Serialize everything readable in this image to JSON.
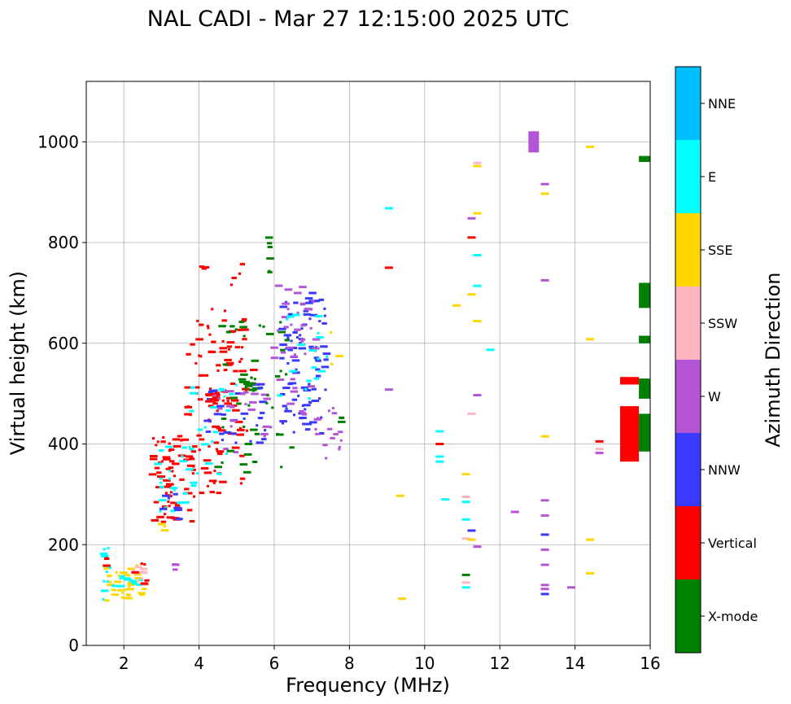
{
  "chart_data": {
    "type": "scatter",
    "title": "NAL CADI - Mar 27 12:15:00 2025 UTC",
    "xlabel": "Frequency (MHz)",
    "ylabel": "Virtual height (km)",
    "xlim": [
      1,
      16
    ],
    "ylim": [
      0,
      1120
    ],
    "xticks": [
      2,
      4,
      6,
      8,
      10,
      12,
      14,
      16
    ],
    "yticks": [
      0,
      200,
      400,
      600,
      800,
      1000
    ],
    "grid": true,
    "colorbar": {
      "label": "Azimuth Direction",
      "categories": [
        {
          "name": "X-mode",
          "color": "#008000"
        },
        {
          "name": "Vertical",
          "color": "#ff0000"
        },
        {
          "name": "NNW",
          "color": "#3a3aff"
        },
        {
          "name": "W",
          "color": "#b455d6"
        },
        {
          "name": "SSW",
          "color": "#ffb6c1"
        },
        {
          "name": "SSE",
          "color": "#ffd700"
        },
        {
          "name": "E",
          "color": "#00ffff"
        },
        {
          "name": "NNE",
          "color": "#00bfff"
        }
      ]
    },
    "clusters": [
      {
        "direction": "E",
        "f": [
          1.45,
          1.6
        ],
        "h": [
          90,
          200
        ],
        "n": 10
      },
      {
        "direction": "Vertical",
        "f": [
          1.45,
          1.55
        ],
        "h": [
          150,
          175
        ],
        "n": 3
      },
      {
        "direction": "SSE",
        "f": [
          1.5,
          2.6
        ],
        "h": [
          88,
          160
        ],
        "n": 34
      },
      {
        "direction": "E",
        "f": [
          1.7,
          2.5
        ],
        "h": [
          115,
          140
        ],
        "n": 12
      },
      {
        "direction": "SSW",
        "f": [
          2.1,
          2.6
        ],
        "h": [
          120,
          160
        ],
        "n": 12
      },
      {
        "direction": "Vertical",
        "f": [
          2.3,
          2.65
        ],
        "h": [
          120,
          170
        ],
        "n": 6
      },
      {
        "direction": "W",
        "f": [
          3.35,
          3.4
        ],
        "h": [
          150,
          165
        ],
        "n": 3
      },
      {
        "direction": "Vertical",
        "f": [
          2.75,
          3.9
        ],
        "h": [
          240,
          420
        ],
        "n": 75
      },
      {
        "direction": "E",
        "f": [
          2.9,
          3.9
        ],
        "h": [
          260,
          400
        ],
        "n": 28
      },
      {
        "direction": "SSE",
        "f": [
          2.9,
          3.1
        ],
        "h": [
          225,
          245
        ],
        "n": 3
      },
      {
        "direction": "NNW",
        "f": [
          3.0,
          3.5
        ],
        "h": [
          250,
          330
        ],
        "n": 8
      },
      {
        "direction": "Vertical",
        "f": [
          3.7,
          5.3
        ],
        "h": [
          300,
          660
        ],
        "n": 90
      },
      {
        "direction": "Vertical",
        "f": [
          4.2,
          4.8
        ],
        "h": [
          480,
          510
        ],
        "n": 18
      },
      {
        "direction": "Vertical",
        "f": [
          4.0,
          5.5
        ],
        "h": [
          540,
          760
        ],
        "n": 20
      },
      {
        "direction": "E",
        "f": [
          3.8,
          5.0
        ],
        "h": [
          330,
          520
        ],
        "n": 20
      },
      {
        "direction": "NNW",
        "f": [
          4.2,
          5.8
        ],
        "h": [
          400,
          520
        ],
        "n": 30
      },
      {
        "direction": "W",
        "f": [
          4.3,
          6.0
        ],
        "h": [
          380,
          520
        ],
        "n": 25
      },
      {
        "direction": "X-mode",
        "f": [
          4.5,
          6.5
        ],
        "h": [
          340,
          650
        ],
        "n": 45
      },
      {
        "direction": "X-mode",
        "f": [
          5.1,
          5.5
        ],
        "h": [
          505,
          545
        ],
        "n": 15
      },
      {
        "direction": "X-mode",
        "f": [
          5.85,
          5.9
        ],
        "h": [
          730,
          820
        ],
        "n": 6
      },
      {
        "direction": "NNW",
        "f": [
          6.2,
          7.4
        ],
        "h": [
          420,
          700
        ],
        "n": 90
      },
      {
        "direction": "W",
        "f": [
          6.0,
          7.4
        ],
        "h": [
          450,
          715
        ],
        "n": 40
      },
      {
        "direction": "E",
        "f": [
          6.0,
          7.5
        ],
        "h": [
          450,
          660
        ],
        "n": 18
      },
      {
        "direction": "W",
        "f": [
          7.1,
          7.8
        ],
        "h": [
          370,
          485
        ],
        "n": 16
      },
      {
        "direction": "X-mode",
        "f": [
          7.75,
          7.8
        ],
        "h": [
          440,
          465
        ],
        "n": 3
      },
      {
        "direction": "SSE",
        "f": [
          7.4,
          7.8
        ],
        "h": [
          555,
          640
        ],
        "n": 3
      }
    ],
    "points": [
      {
        "f": 9.05,
        "h": 750,
        "direction": "Vertical"
      },
      {
        "f": 9.05,
        "h": 868,
        "direction": "E"
      },
      {
        "f": 9.05,
        "h": 508,
        "direction": "W"
      },
      {
        "f": 9.35,
        "h": 297,
        "direction": "SSE"
      },
      {
        "f": 9.4,
        "h": 93,
        "direction": "SSE"
      },
      {
        "f": 10.4,
        "h": 425,
        "direction": "E"
      },
      {
        "f": 10.4,
        "h": 400,
        "direction": "Vertical"
      },
      {
        "f": 10.4,
        "h": 375,
        "direction": "E"
      },
      {
        "f": 10.4,
        "h": 365,
        "direction": "E"
      },
      {
        "f": 10.55,
        "h": 290,
        "direction": "E"
      },
      {
        "f": 10.85,
        "h": 675,
        "direction": "SSE"
      },
      {
        "f": 11.1,
        "h": 340,
        "direction": "SSE"
      },
      {
        "f": 11.1,
        "h": 295,
        "direction": "SSW"
      },
      {
        "f": 11.1,
        "h": 285,
        "direction": "E"
      },
      {
        "f": 11.1,
        "h": 250,
        "direction": "E"
      },
      {
        "f": 11.1,
        "h": 212,
        "direction": "SSW"
      },
      {
        "f": 11.1,
        "h": 140,
        "direction": "X-mode"
      },
      {
        "f": 11.1,
        "h": 125,
        "direction": "SSW"
      },
      {
        "f": 11.1,
        "h": 115,
        "direction": "E"
      },
      {
        "f": 11.25,
        "h": 848,
        "direction": "W"
      },
      {
        "f": 11.25,
        "h": 810,
        "direction": "Vertical"
      },
      {
        "f": 11.25,
        "h": 697,
        "direction": "SSE"
      },
      {
        "f": 11.25,
        "h": 460,
        "direction": "SSW"
      },
      {
        "f": 11.25,
        "h": 228,
        "direction": "NNW"
      },
      {
        "f": 11.25,
        "h": 210,
        "direction": "SSE"
      },
      {
        "f": 11.4,
        "h": 958,
        "direction": "SSW"
      },
      {
        "f": 11.4,
        "h": 952,
        "direction": "SSE"
      },
      {
        "f": 11.4,
        "h": 858,
        "direction": "SSE"
      },
      {
        "f": 11.4,
        "h": 775,
        "direction": "E"
      },
      {
        "f": 11.4,
        "h": 714,
        "direction": "E"
      },
      {
        "f": 11.4,
        "h": 644,
        "direction": "SSE"
      },
      {
        "f": 11.4,
        "h": 497,
        "direction": "W"
      },
      {
        "f": 11.4,
        "h": 196,
        "direction": "W"
      },
      {
        "f": 11.75,
        "h": 587,
        "direction": "E"
      },
      {
        "f": 12.4,
        "h": 265,
        "direction": "W"
      },
      {
        "f": 12.9,
        "h": 1000,
        "direction": "W",
        "size": "large"
      },
      {
        "f": 13.2,
        "h": 916,
        "direction": "W"
      },
      {
        "f": 13.2,
        "h": 897,
        "direction": "SSE"
      },
      {
        "f": 13.2,
        "h": 725,
        "direction": "W"
      },
      {
        "f": 13.2,
        "h": 415,
        "direction": "SSE"
      },
      {
        "f": 13.2,
        "h": 288,
        "direction": "W"
      },
      {
        "f": 13.2,
        "h": 258,
        "direction": "W"
      },
      {
        "f": 13.2,
        "h": 220,
        "direction": "NNW"
      },
      {
        "f": 13.2,
        "h": 190,
        "direction": "W"
      },
      {
        "f": 13.2,
        "h": 160,
        "direction": "W"
      },
      {
        "f": 13.2,
        "h": 120,
        "direction": "W"
      },
      {
        "f": 13.2,
        "h": 112,
        "direction": "W"
      },
      {
        "f": 13.2,
        "h": 102,
        "direction": "NNW"
      },
      {
        "f": 13.9,
        "h": 115,
        "direction": "W"
      },
      {
        "f": 14.4,
        "h": 990,
        "direction": "SSE"
      },
      {
        "f": 14.4,
        "h": 608,
        "direction": "SSE"
      },
      {
        "f": 14.4,
        "h": 210,
        "direction": "SSE"
      },
      {
        "f": 14.4,
        "h": 143,
        "direction": "SSE"
      },
      {
        "f": 14.65,
        "h": 405,
        "direction": "Vertical"
      },
      {
        "f": 14.65,
        "h": 390,
        "direction": "SSW"
      },
      {
        "f": 14.65,
        "h": 382,
        "direction": "W"
      }
    ],
    "bands": [
      {
        "f": [
          15.2,
          15.7
        ],
        "h": [
          365,
          475
        ],
        "direction": "Vertical"
      },
      {
        "f": [
          15.2,
          15.7
        ],
        "h": [
          518,
          533
        ],
        "direction": "Vertical"
      },
      {
        "f": [
          15.7,
          16.0
        ],
        "h": [
          490,
          530
        ],
        "direction": "X-mode"
      },
      {
        "f": [
          15.7,
          16.0
        ],
        "h": [
          600,
          615
        ],
        "direction": "X-mode"
      },
      {
        "f": [
          15.7,
          16.0
        ],
        "h": [
          670,
          720
        ],
        "direction": "X-mode"
      },
      {
        "f": [
          15.7,
          16.0
        ],
        "h": [
          960,
          972
        ],
        "direction": "X-mode"
      },
      {
        "f": [
          15.7,
          16.0
        ],
        "h": [
          385,
          460
        ],
        "direction": "X-mode"
      }
    ]
  }
}
